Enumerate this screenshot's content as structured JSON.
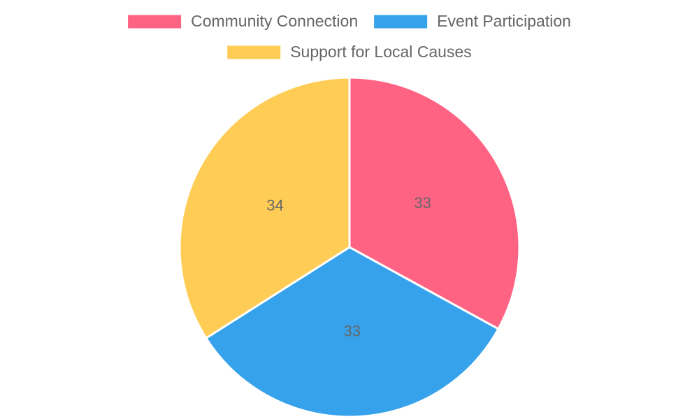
{
  "chart_data": {
    "type": "pie",
    "categories": [
      "Community Connection",
      "Event Participation",
      "Support for Local Causes"
    ],
    "values": [
      33,
      33,
      34
    ],
    "colors": [
      "#ff6384",
      "#36a2eb",
      "#ffcd56"
    ],
    "legend": "top"
  }
}
